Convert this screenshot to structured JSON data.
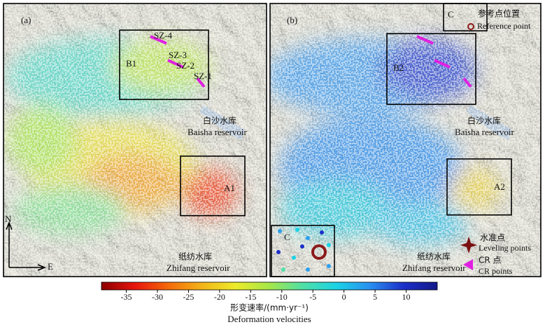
{
  "panels": [
    {
      "label": "(a)",
      "boxes": [
        "B1",
        "A1"
      ],
      "sites": [
        "SZ-4",
        "SZ-3",
        "SZ-2",
        "SZ-1"
      ],
      "reservoirs": [
        {
          "name": "白沙水库",
          "name_en": "Baisha reservoir"
        },
        {
          "name": "纸纺水库",
          "name_en": "Zhifang reservoir"
        }
      ],
      "north": "N",
      "east": "E"
    },
    {
      "label": "(b)",
      "boxes": [
        "B2",
        "A2"
      ],
      "reference_box": "C",
      "reference": {
        "name": "参考点位置",
        "name_en": "Reference point"
      },
      "inset_label": "C",
      "reservoirs": [
        {
          "name": "白沙水库",
          "name_en": "Baisha reservoir"
        },
        {
          "name": "纸纺水库",
          "name_en": "Zhifang reservoir"
        }
      ],
      "legend": [
        {
          "name": "水准点",
          "name_en": "Leveling points"
        },
        {
          "name": "CR 点",
          "name_en": "CR points"
        }
      ]
    }
  ],
  "colorbar": {
    "title": "形变速率/(mm·yr⁻¹)",
    "title_en": "Deformation velocities",
    "lim": [
      -39,
      15
    ],
    "ticks": [
      -35,
      -30,
      -25,
      -20,
      -15,
      -10,
      -5,
      0,
      5,
      10
    ],
    "colors": [
      "#8b0000",
      "#e8140c",
      "#f56a0a",
      "#f3b51a",
      "#ecec2a",
      "#a6e64a",
      "#4fe0a6",
      "#1ad3e6",
      "#2a8ff0",
      "#1b2fc8",
      "#141a8a"
    ]
  }
}
